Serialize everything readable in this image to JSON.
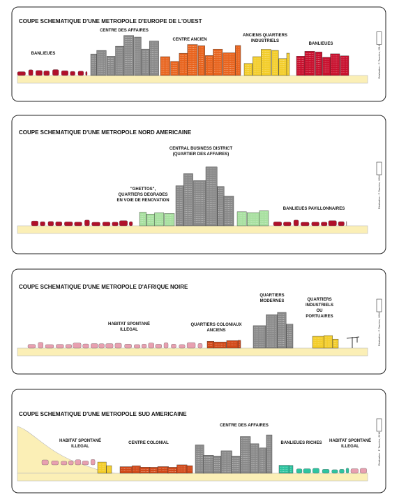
{
  "panels": [
    {
      "title": "COUPE SCHEMATIQUE D'UNE METROPOLE D'EUROPE DE L'OUEST",
      "labels": [
        [
          "BANLIEUES"
        ],
        [
          "CENTRE DES AFFAIRES"
        ],
        [
          "CENTRE ANCIEN"
        ],
        [
          "ANCIENS QUARTIERS",
          "INDUSTRIELS"
        ],
        [
          "BANLIEUES"
        ]
      ],
      "credit": "Réalisation : F. Taunière, 2016"
    },
    {
      "title": "COUPE SCHEMATIQUE D'UNE METROPOLE  NORD AMERICAINE",
      "labels": [
        [
          "\"GHETTOS\",",
          "QUARTIERS DEGRADES",
          "EN VOIE DE RENOVATION"
        ],
        [
          "CENTRAL BUSINESS DISTRICT",
          "(QUARTIER DES AFFAIRES)"
        ],
        [
          "BANLIEUES PAVILLONNAIRES"
        ]
      ],
      "credit": "Réalisation : F. Taunière, 2016"
    },
    {
      "title": "COUPE SCHEMATIQUE D'UNE METROPOLE D'AFRIQUE NOIRE",
      "labels": [
        [
          "HABITAT SPONTANÉ",
          "ILLEGAL"
        ],
        [
          "QUARTIERS COLONIAUX",
          "ANCIENS"
        ],
        [
          "QUARTIERS",
          "MODERNES"
        ],
        [
          "QUARTIERS",
          "INDUSTRIELS",
          "OU",
          "PORTUAIRES"
        ]
      ],
      "credit": "Réalisation : F. Taunière, 2016"
    },
    {
      "title": "COUPE SCHEMATIQUE D'UNE METROPOLE SUD AMERICAINE",
      "labels": [
        [
          "HABITAT SPONTANÉ",
          "ILLEGAL"
        ],
        [
          "CENTRE COLONIAL"
        ],
        [
          "CENTRE DES AFFAIRES"
        ],
        [
          "BANLIEUES RICHES"
        ],
        [
          "HABITAT SPONTANÉ",
          "ILLEGAL"
        ]
      ],
      "credit": "Réalisation : F. Taunière, 2016"
    }
  ]
}
